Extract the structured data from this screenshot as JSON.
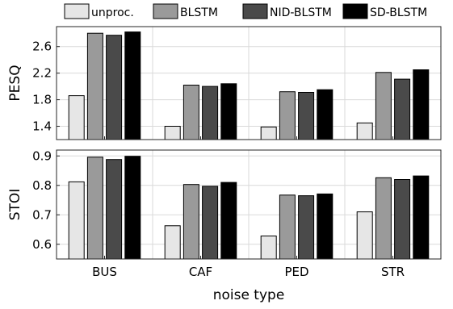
{
  "chart_data": {
    "type": "bar",
    "categories": [
      "BUS",
      "CAF",
      "PED",
      "STR"
    ],
    "xlabel": "noise type",
    "legend": {
      "placement": "top",
      "entries": [
        "unproc.",
        "BLSTM",
        "NID-BLSTM",
        "SD-BLSTM"
      ]
    },
    "grid": true,
    "series_colors": [
      "#e6e6e6",
      "#9a9a9a",
      "#4a4a4a",
      "#000000"
    ],
    "subplots": [
      {
        "ylabel": "PESQ",
        "ylim": [
          1.2,
          2.9
        ],
        "yticks": [
          1.4,
          1.8,
          2.2,
          2.6
        ],
        "series": [
          {
            "name": "unproc.",
            "values": [
              1.86,
              1.4,
              1.39,
              1.45
            ]
          },
          {
            "name": "BLSTM",
            "values": [
              2.8,
              2.02,
              1.92,
              2.21
            ]
          },
          {
            "name": "NID-BLSTM",
            "values": [
              2.77,
              2.0,
              1.91,
              2.11
            ]
          },
          {
            "name": "SD-BLSTM",
            "values": [
              2.82,
              2.04,
              1.95,
              2.25
            ]
          }
        ]
      },
      {
        "ylabel": "STOI",
        "ylim": [
          0.55,
          0.92
        ],
        "yticks": [
          0.6,
          0.7,
          0.8,
          0.9
        ],
        "series": [
          {
            "name": "unproc.",
            "values": [
              0.812,
              0.663,
              0.628,
              0.71
            ]
          },
          {
            "name": "BLSTM",
            "values": [
              0.896,
              0.803,
              0.767,
              0.826
            ]
          },
          {
            "name": "NID-BLSTM",
            "values": [
              0.888,
              0.797,
              0.765,
              0.82
            ]
          },
          {
            "name": "SD-BLSTM",
            "values": [
              0.899,
              0.81,
              0.771,
              0.832
            ]
          }
        ]
      }
    ]
  }
}
